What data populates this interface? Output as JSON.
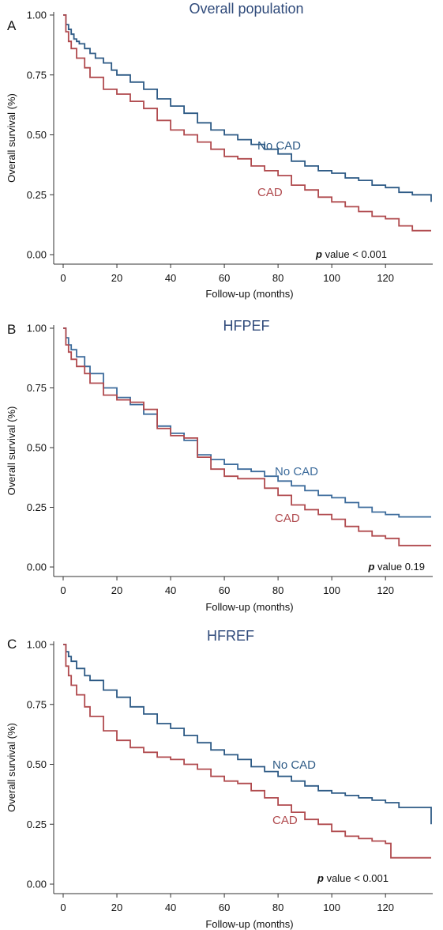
{
  "chart_data": [
    {
      "type": "line",
      "panel_letter": "A",
      "title": "Overall population",
      "xlabel": "Follow-up (months)",
      "ylabel": "Overall survival (%)",
      "xlim": [
        0,
        137
      ],
      "ylim": [
        0,
        1
      ],
      "x_ticks": [
        0,
        20,
        40,
        60,
        80,
        100,
        120
      ],
      "y_ticks": [
        "0.00",
        "0.25",
        "0.50",
        "0.75",
        "1.00"
      ],
      "p_prefix": "p",
      "p_text": " value < 0.001",
      "series": [
        {
          "name": "No CAD",
          "color": "#2d5a85",
          "x": [
            0,
            1,
            2,
            3,
            4,
            5,
            6,
            8,
            10,
            12,
            15,
            18,
            20,
            25,
            30,
            35,
            40,
            45,
            50,
            55,
            60,
            65,
            70,
            75,
            80,
            85,
            90,
            95,
            100,
            105,
            110,
            115,
            120,
            125,
            130,
            137
          ],
          "y": [
            1.0,
            0.96,
            0.94,
            0.92,
            0.9,
            0.89,
            0.88,
            0.86,
            0.84,
            0.82,
            0.8,
            0.77,
            0.75,
            0.72,
            0.69,
            0.65,
            0.62,
            0.59,
            0.55,
            0.52,
            0.5,
            0.48,
            0.46,
            0.44,
            0.42,
            0.39,
            0.37,
            0.35,
            0.34,
            0.32,
            0.31,
            0.29,
            0.28,
            0.26,
            0.25,
            0.22
          ]
        },
        {
          "name": "CAD",
          "color": "#b04a4e",
          "x": [
            0,
            1,
            2,
            3,
            5,
            8,
            10,
            15,
            20,
            25,
            30,
            35,
            40,
            45,
            50,
            55,
            60,
            65,
            70,
            75,
            80,
            85,
            90,
            95,
            100,
            105,
            110,
            115,
            120,
            125,
            130,
            137
          ],
          "y": [
            1.0,
            0.93,
            0.89,
            0.86,
            0.82,
            0.78,
            0.74,
            0.69,
            0.67,
            0.64,
            0.61,
            0.56,
            0.52,
            0.5,
            0.47,
            0.44,
            0.41,
            0.4,
            0.37,
            0.35,
            0.33,
            0.29,
            0.27,
            0.24,
            0.22,
            0.2,
            0.18,
            0.16,
            0.15,
            0.12,
            0.1,
            0.1
          ]
        }
      ]
    },
    {
      "type": "line",
      "panel_letter": "B",
      "title": "HFPEF",
      "xlabel": "Follow-up (months)",
      "ylabel": "Overall survival (%)",
      "xlim": [
        0,
        137
      ],
      "ylim": [
        0,
        1
      ],
      "x_ticks": [
        0,
        20,
        40,
        60,
        80,
        100,
        120
      ],
      "y_ticks": [
        "0.00",
        "0.25",
        "0.50",
        "0.75",
        "1.00"
      ],
      "p_prefix": "p",
      "p_text": " value 0.19",
      "series": [
        {
          "name": "No CAD",
          "color": "#3d6c9c",
          "x": [
            0,
            1,
            2,
            3,
            5,
            8,
            10,
            15,
            20,
            25,
            30,
            35,
            40,
            45,
            50,
            55,
            60,
            65,
            70,
            75,
            80,
            85,
            90,
            95,
            100,
            105,
            110,
            115,
            120,
            125,
            130,
            137
          ],
          "y": [
            1.0,
            0.96,
            0.93,
            0.91,
            0.88,
            0.84,
            0.81,
            0.75,
            0.71,
            0.68,
            0.64,
            0.59,
            0.56,
            0.53,
            0.47,
            0.45,
            0.43,
            0.41,
            0.4,
            0.38,
            0.36,
            0.34,
            0.32,
            0.3,
            0.29,
            0.27,
            0.25,
            0.23,
            0.22,
            0.21,
            0.21,
            0.21
          ]
        },
        {
          "name": "CAD",
          "color": "#b04a4e",
          "x": [
            0,
            1,
            2,
            3,
            5,
            8,
            10,
            15,
            20,
            25,
            30,
            35,
            40,
            45,
            50,
            55,
            60,
            65,
            70,
            75,
            80,
            85,
            90,
            95,
            100,
            105,
            110,
            115,
            120,
            125,
            130,
            137
          ],
          "y": [
            1.0,
            0.93,
            0.9,
            0.87,
            0.84,
            0.81,
            0.77,
            0.72,
            0.7,
            0.69,
            0.66,
            0.58,
            0.55,
            0.54,
            0.46,
            0.41,
            0.38,
            0.37,
            0.37,
            0.33,
            0.3,
            0.26,
            0.24,
            0.22,
            0.2,
            0.17,
            0.15,
            0.13,
            0.12,
            0.09,
            0.09,
            0.09
          ]
        }
      ]
    },
    {
      "type": "line",
      "panel_letter": "C",
      "title": "HFREF",
      "xlabel": "Follow-up (months)",
      "ylabel": "Overall survival (%)",
      "xlim": [
        0,
        137
      ],
      "ylim": [
        0,
        1
      ],
      "x_ticks": [
        0,
        20,
        40,
        60,
        80,
        100,
        120
      ],
      "y_ticks": [
        "0.00",
        "0.25",
        "0.50",
        "0.75",
        "1.00"
      ],
      "p_prefix": "p",
      "p_text": " value < 0.001",
      "series": [
        {
          "name": "No CAD",
          "color": "#2d5a85",
          "x": [
            0,
            1,
            2,
            3,
            5,
            8,
            10,
            15,
            20,
            25,
            30,
            35,
            40,
            45,
            50,
            55,
            60,
            65,
            70,
            75,
            80,
            85,
            90,
            95,
            100,
            105,
            110,
            115,
            120,
            125,
            130,
            137
          ],
          "y": [
            1.0,
            0.97,
            0.95,
            0.93,
            0.9,
            0.87,
            0.85,
            0.81,
            0.78,
            0.74,
            0.71,
            0.67,
            0.65,
            0.62,
            0.59,
            0.56,
            0.54,
            0.52,
            0.49,
            0.47,
            0.45,
            0.43,
            0.41,
            0.39,
            0.38,
            0.37,
            0.36,
            0.35,
            0.34,
            0.32,
            0.32,
            0.25
          ]
        },
        {
          "name": "CAD",
          "color": "#b04a4e",
          "x": [
            0,
            1,
            2,
            3,
            5,
            8,
            10,
            15,
            20,
            25,
            30,
            35,
            40,
            45,
            50,
            55,
            60,
            65,
            70,
            75,
            80,
            85,
            90,
            95,
            100,
            105,
            110,
            115,
            120,
            122,
            130,
            137
          ],
          "y": [
            1.0,
            0.91,
            0.87,
            0.83,
            0.79,
            0.74,
            0.7,
            0.64,
            0.6,
            0.57,
            0.55,
            0.53,
            0.52,
            0.5,
            0.48,
            0.45,
            0.43,
            0.42,
            0.39,
            0.36,
            0.33,
            0.3,
            0.27,
            0.25,
            0.22,
            0.2,
            0.19,
            0.18,
            0.17,
            0.11,
            0.11,
            0.11
          ]
        }
      ]
    }
  ]
}
